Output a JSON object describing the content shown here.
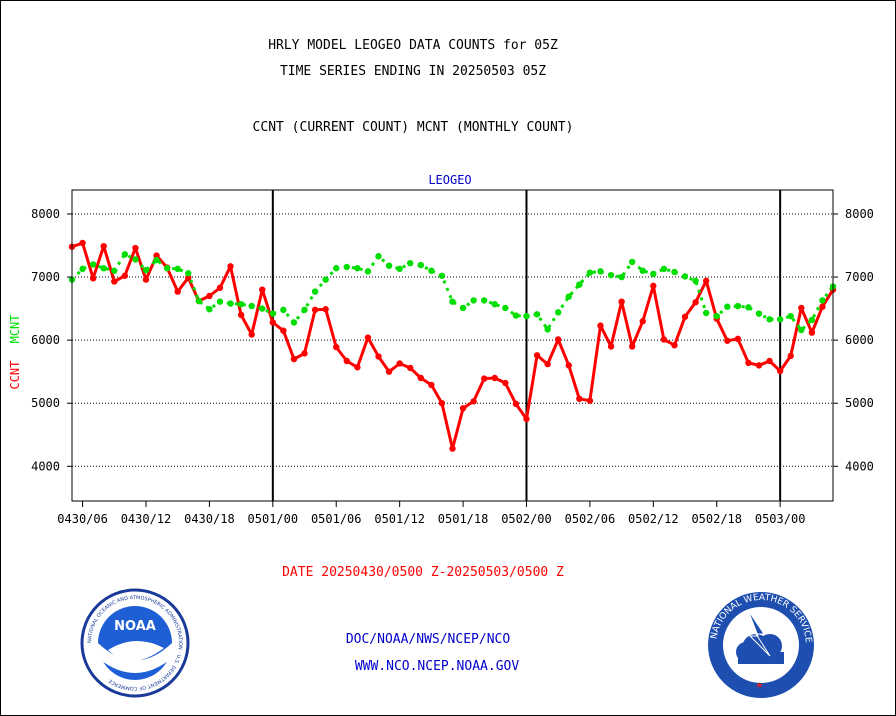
{
  "header": {
    "title_line1": "HRLY MODEL LEOGEO DATA COUNTS for 05Z",
    "title_line2": "TIME SERIES ENDING IN 20250503 05Z",
    "subtitle": "CCNT (CURRENT COUNT) MCNT (MONTHLY COUNT)"
  },
  "footer": {
    "date_range": "DATE 20250430/0500 Z-20250503/0500 Z",
    "org_line": "DOC/NOAA/NWS/NCEP/NCO",
    "url_line": "WWW.NCO.NCEP.NOAA.GOV"
  },
  "logos": {
    "noaa_text": "NOAA",
    "noaa_ring_text": "NATIONAL OCEANIC AND ATMOSPHERIC ADMINISTRATION · U.S. DEPARTMENT OF COMMERCE",
    "nws_ring_text": "NATIONAL WEATHER SERVICE"
  },
  "colors": {
    "ccnt": "#ff0000",
    "mcnt": "#00dd00",
    "plot_title": "#0000cc",
    "footer_blue": "#0000cc"
  },
  "chart_data": {
    "type": "line",
    "title": "LEOGEO",
    "ylabel_parts": [
      {
        "text": "CCNT",
        "color": "#ff0000"
      },
      {
        "text": "MCNT",
        "color": "#00dd00"
      }
    ],
    "x_unit": "hours from 2025-04-30 05Z",
    "xlim": [
      0,
      72
    ],
    "ylim": [
      3450,
      8380
    ],
    "yticks": [
      4000,
      5000,
      6000,
      7000,
      8000
    ],
    "xticks": [
      {
        "x": 1,
        "label": "0430/06"
      },
      {
        "x": 7,
        "label": "0430/12"
      },
      {
        "x": 13,
        "label": "0430/18"
      },
      {
        "x": 19,
        "label": "0501/00"
      },
      {
        "x": 25,
        "label": "0501/06"
      },
      {
        "x": 31,
        "label": "0501/12"
      },
      {
        "x": 37,
        "label": "0501/18"
      },
      {
        "x": 43,
        "label": "0502/00"
      },
      {
        "x": 49,
        "label": "0502/06"
      },
      {
        "x": 55,
        "label": "0502/12"
      },
      {
        "x": 61,
        "label": "0502/18"
      },
      {
        "x": 67,
        "label": "0503/00"
      }
    ],
    "day_lines": [
      19,
      43,
      67
    ],
    "grid": "horizontal dotted",
    "series": [
      {
        "name": "CCNT",
        "color": "#ff0000",
        "style": "solid",
        "values": [
          7480,
          7540,
          6980,
          7490,
          6930,
          7020,
          7460,
          6960,
          7340,
          7150,
          6770,
          6990,
          6620,
          6700,
          6830,
          7170,
          6400,
          6090,
          6800,
          6280,
          6150,
          5700,
          5790,
          6480,
          6490,
          5890,
          5670,
          5570,
          6040,
          5740,
          5500,
          5630,
          5560,
          5400,
          5290,
          5000,
          4280,
          4920,
          5030,
          5390,
          5400,
          5320,
          4990,
          4750,
          5760,
          5620,
          6010,
          5600,
          5070,
          5040,
          6230,
          5900,
          6610,
          5900,
          6300,
          6860,
          6010,
          5920,
          6370,
          6600,
          6940,
          6340,
          5990,
          6020,
          5640,
          5600,
          5670,
          5510,
          5750,
          6510,
          6120,
          6530,
          6800
        ]
      },
      {
        "name": "MCNT",
        "color": "#00dd00",
        "style": "dotted",
        "values": [
          6960,
          7130,
          7200,
          7140,
          7100,
          7360,
          7280,
          7110,
          7270,
          7140,
          7130,
          7060,
          6620,
          6490,
          6610,
          6580,
          6570,
          6540,
          6500,
          6420,
          6480,
          6280,
          6480,
          6770,
          6960,
          7140,
          7160,
          7140,
          7090,
          7330,
          7180,
          7130,
          7220,
          7190,
          7100,
          7020,
          6610,
          6510,
          6630,
          6630,
          6570,
          6510,
          6390,
          6380,
          6410,
          6170,
          6440,
          6690,
          6880,
          7070,
          7090,
          7030,
          7000,
          7240,
          7100,
          7050,
          7130,
          7080,
          7010,
          6940,
          6430,
          6380,
          6530,
          6540,
          6520,
          6420,
          6330,
          6330,
          6380,
          6160,
          6320,
          6630,
          6850
        ]
      }
    ]
  }
}
